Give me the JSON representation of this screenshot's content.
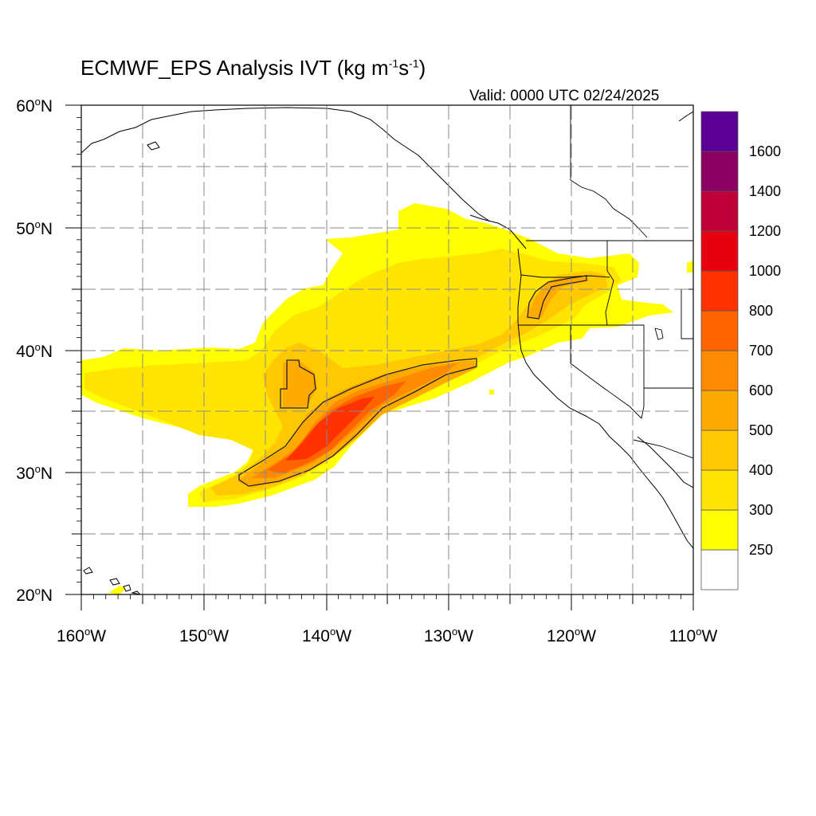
{
  "title": {
    "prefix": "ECMWF_EPS Analysis IVT (kg m",
    "exp1": "-1",
    "middle": "s",
    "exp2": "-1",
    "suffix": ")"
  },
  "valid": "Valid: 0000 UTC 02/24/2025",
  "map": {
    "lat_range": [
      20,
      60
    ],
    "lon_range": [
      -160,
      -110
    ],
    "lat_labels": [
      "60",
      "50",
      "40",
      "30",
      "20"
    ],
    "lat_suffix": "N",
    "lon_labels": [
      "160",
      "150",
      "140",
      "130",
      "120",
      "110"
    ],
    "lon_suffix": "W",
    "degree_symbol": "o",
    "grid": "dashed every 5 degrees"
  },
  "colorbar": {
    "labels": [
      "250",
      "300",
      "400",
      "500",
      "600",
      "700",
      "800",
      "1000",
      "1200",
      "1400",
      "1600"
    ],
    "colors": [
      "#ffffff",
      "#ffff00",
      "#ffe400",
      "#ffc800",
      "#ffaa00",
      "#ff8c00",
      "#ff6400",
      "#ff3200",
      "#e80010",
      "#c00038",
      "#8c0064",
      "#5a0096"
    ]
  },
  "ivt_colors": {
    "c250": "#ffff00",
    "c300": "#ffe400",
    "c400": "#ffc800",
    "c500": "#ffaa00",
    "c600": "#ff8c00",
    "c700": "#ff6400",
    "c800": "#ff3200"
  }
}
